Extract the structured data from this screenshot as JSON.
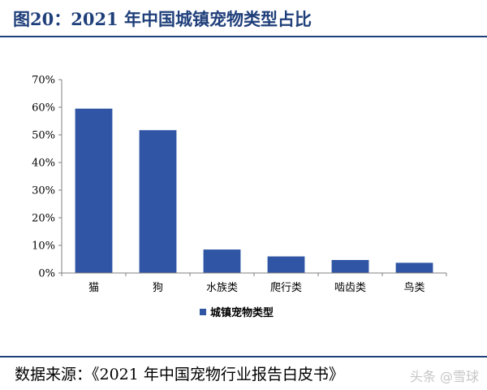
{
  "header": {
    "title": "图20：2021 年中国城镇宠物类型占比"
  },
  "footer": {
    "source": "数据来源：《2021 年中国宠物行业报告白皮书》",
    "watermark": "头条 @雪球"
  },
  "colors": {
    "bar": "#2f55a4",
    "title": "#1f3f7a",
    "axis": "#808080"
  },
  "chart_data": {
    "type": "bar",
    "categories": [
      "猫",
      "狗",
      "水族类",
      "爬行类",
      "啮齿类",
      "鸟类"
    ],
    "series": [
      {
        "name": "城镇宠物类型",
        "values": [
          59.5,
          51.7,
          8.5,
          6.0,
          4.7,
          3.7
        ]
      }
    ],
    "title": "",
    "xlabel": "",
    "ylabel": "",
    "ylim": [
      0,
      70
    ],
    "yticks": [
      "0%",
      "10%",
      "20%",
      "30%",
      "40%",
      "50%",
      "60%",
      "70%"
    ],
    "grid": false,
    "legend": "bottom"
  }
}
